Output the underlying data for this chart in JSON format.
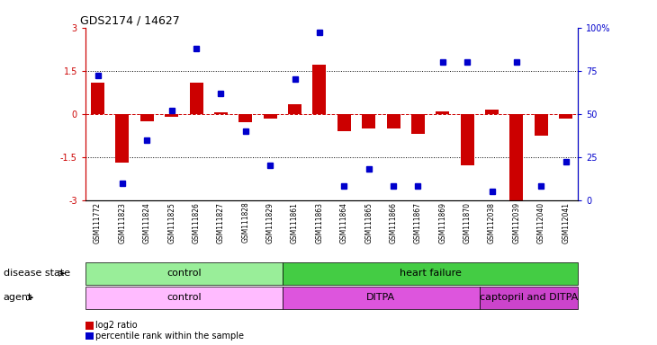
{
  "title": "GDS2174 / 14627",
  "samples": [
    "GSM111772",
    "GSM111823",
    "GSM111824",
    "GSM111825",
    "GSM111826",
    "GSM111827",
    "GSM111828",
    "GSM111829",
    "GSM111861",
    "GSM111863",
    "GSM111864",
    "GSM111865",
    "GSM111866",
    "GSM111867",
    "GSM111869",
    "GSM111870",
    "GSM112038",
    "GSM112039",
    "GSM112040",
    "GSM112041"
  ],
  "log2_ratio": [
    1.1,
    -1.7,
    -0.25,
    -0.1,
    1.1,
    0.05,
    -0.3,
    -0.15,
    0.35,
    1.7,
    -0.6,
    -0.5,
    -0.5,
    -0.7,
    0.1,
    -1.8,
    0.15,
    -3.0,
    -0.75,
    -0.15
  ],
  "percentile": [
    72,
    10,
    35,
    52,
    88,
    62,
    40,
    20,
    70,
    97,
    8,
    18,
    8,
    8,
    80,
    80,
    5,
    80,
    8,
    22
  ],
  "ylim": [
    -3,
    3
  ],
  "yticks_left": [
    -3,
    -1.5,
    0,
    1.5,
    3
  ],
  "yticks_right": [
    0,
    25,
    50,
    75,
    100
  ],
  "bar_color": "#cc0000",
  "dot_color": "#0000cc",
  "zero_line_color": "#cc0000",
  "grid_color": "#000000",
  "background_color": "#ffffff",
  "disease_state_groups": [
    {
      "label": "control",
      "start": 0,
      "end": 8,
      "color": "#99ee99"
    },
    {
      "label": "heart failure",
      "start": 8,
      "end": 20,
      "color": "#44cc44"
    }
  ],
  "agent_groups": [
    {
      "label": "control",
      "start": 0,
      "end": 8,
      "color": "#ffbbff"
    },
    {
      "label": "DITPA",
      "start": 8,
      "end": 16,
      "color": "#dd55dd"
    },
    {
      "label": "captopril and DITPA",
      "start": 16,
      "end": 20,
      "color": "#cc44cc"
    }
  ],
  "legend_bar_label": "log2 ratio",
  "legend_dot_label": "percentile rank within the sample",
  "title_fontsize": 9,
  "tick_fontsize": 7,
  "label_fontsize": 8,
  "sample_fontsize": 5.5
}
